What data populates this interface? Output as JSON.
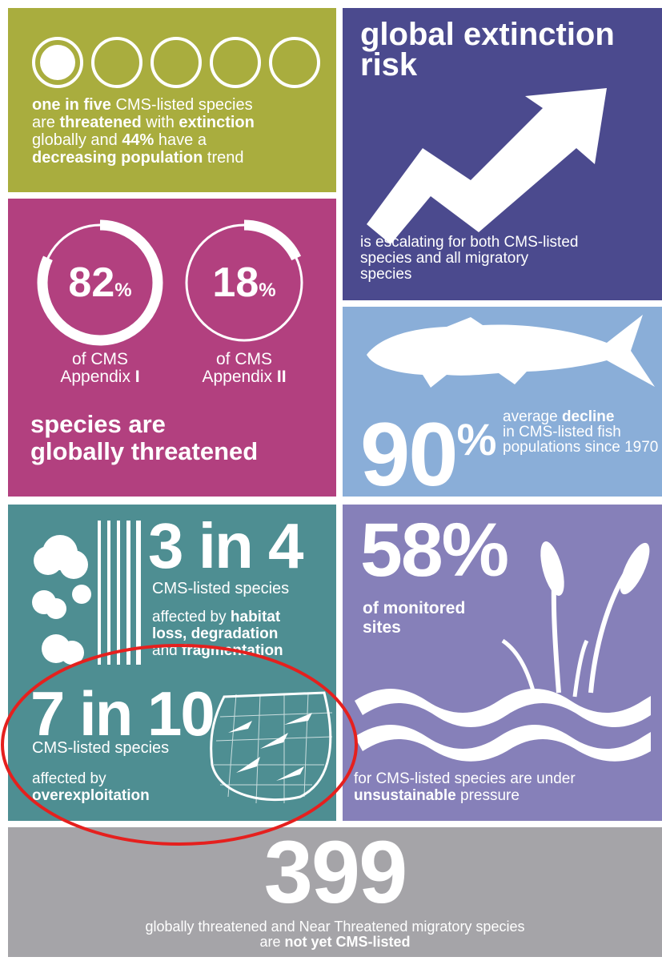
{
  "panel_threatened": {
    "lines": [
      [
        {
          "text": "one in five",
          "bold": true
        },
        {
          "text": " CMS-listed species",
          "bold": false
        }
      ],
      [
        {
          "text": "are ",
          "bold": false
        },
        {
          "text": "threatened",
          "bold": true
        },
        {
          "text": " with ",
          "bold": false
        },
        {
          "text": "extinction",
          "bold": true
        }
      ],
      [
        {
          "text": "globally and ",
          "bold": false
        },
        {
          "text": "44%",
          "bold": true
        },
        {
          "text": " have a",
          "bold": false
        }
      ],
      [
        {
          "text": "decreasing population",
          "bold": true
        },
        {
          "text": " trend",
          "bold": false
        }
      ]
    ]
  },
  "panel_risk": {
    "title_lines": [
      "global extinction",
      "risk"
    ],
    "lines": [
      [
        {
          "text": "is escalating for both CMS-listed",
          "bold": false
        }
      ],
      [
        {
          "text": "species and all migratory",
          "bold": false
        }
      ],
      [
        {
          "text": "species",
          "bold": false
        }
      ]
    ]
  },
  "panel_appendix": {
    "rings": [
      {
        "percent": 82,
        "unit": "%",
        "label_lines": [
          [
            {
              "text": "of CMS",
              "bold": false
            }
          ],
          [
            {
              "text": "Appendix ",
              "bold": false
            },
            {
              "text": "I",
              "bold": true
            }
          ]
        ]
      },
      {
        "percent": 18,
        "unit": "%",
        "label_lines": [
          [
            {
              "text": "of CMS",
              "bold": false
            }
          ],
          [
            {
              "text": "Appendix ",
              "bold": false
            },
            {
              "text": "II",
              "bold": true
            }
          ]
        ]
      }
    ],
    "footer_lines": [
      [
        {
          "text": "species are",
          "bold": true
        }
      ],
      [
        {
          "text": "globally threatened",
          "bold": true
        }
      ]
    ]
  },
  "panel_fish": {
    "number": "90",
    "unit": "%",
    "lines": [
      [
        {
          "text": "average ",
          "bold": false
        },
        {
          "text": "decline",
          "bold": true
        }
      ],
      [
        {
          "text": "in CMS-listed fish",
          "bold": false
        }
      ],
      [
        {
          "text": "populations since 1970",
          "bold": false
        }
      ]
    ]
  },
  "panel_habitat": {
    "headline": "3 in 4",
    "subhead": "CMS-listed species",
    "lines": [
      [
        {
          "text": "affected by ",
          "bold": false
        },
        {
          "text": "habitat",
          "bold": true
        }
      ],
      [
        {
          "text": "loss, degradation",
          "bold": true
        }
      ],
      [
        {
          "text": "and ",
          "bold": false
        },
        {
          "text": "fragmentation",
          "bold": true
        }
      ]
    ]
  },
  "panel_overexploitation": {
    "headline": "7 in 10",
    "subhead": "CMS-listed species",
    "lines": [
      [
        {
          "text": "affected by",
          "bold": false
        }
      ],
      [
        {
          "text": "overexploitation",
          "bold": true
        }
      ]
    ]
  },
  "panel_sites": {
    "headline": "58%",
    "sub_lines": [
      [
        {
          "text": "of monitored",
          "bold": true
        }
      ],
      [
        {
          "text": "sites",
          "bold": true
        }
      ]
    ],
    "lines": [
      [
        {
          "text": "for CMS-listed species are under",
          "bold": false
        }
      ],
      [
        {
          "text": "unsustainable",
          "bold": true
        },
        {
          "text": " pressure",
          "bold": false
        }
      ]
    ]
  },
  "panel_unlisted": {
    "headline": "399",
    "lines": [
      [
        {
          "text": "globally threatened and Near Threatened migratory species",
          "bold": false
        }
      ],
      [
        {
          "text": "are ",
          "bold": false
        },
        {
          "text": "not yet CMS-listed",
          "bold": true
        }
      ]
    ]
  }
}
